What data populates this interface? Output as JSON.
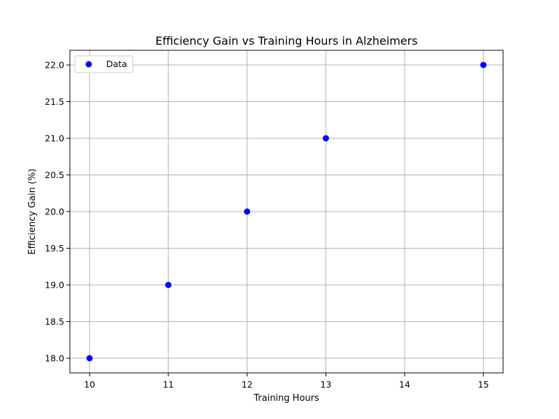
{
  "chart_data": {
    "type": "scatter",
    "title": "Efficiency Gain vs Training Hours in Alzheimers",
    "xlabel": "Training Hours",
    "ylabel": "Efficiency Gain (%)",
    "xlim": [
      9.75,
      15.25
    ],
    "ylim": [
      17.8,
      22.2
    ],
    "xticks": [
      "10",
      "11",
      "12",
      "13",
      "14",
      "15"
    ],
    "yticks": [
      "18.0",
      "18.5",
      "19.0",
      "19.5",
      "20.0",
      "20.5",
      "21.0",
      "21.5",
      "22.0"
    ],
    "grid": true,
    "legend_position": "upper-left",
    "series": [
      {
        "name": "Data",
        "color": "#0000ff",
        "points": [
          {
            "x": 10,
            "y": 18
          },
          {
            "x": 11,
            "y": 19
          },
          {
            "x": 12,
            "y": 20
          },
          {
            "x": 13,
            "y": 21
          },
          {
            "x": 15,
            "y": 22
          }
        ]
      }
    ]
  }
}
